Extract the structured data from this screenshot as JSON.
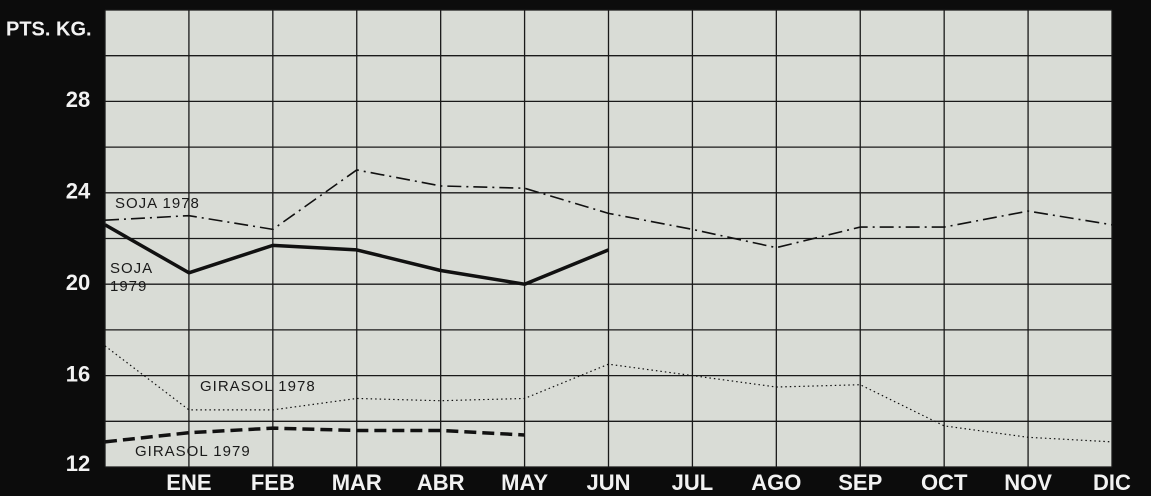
{
  "chart_data": {
    "type": "line",
    "y_label": "PTS. KG.",
    "categories": [
      null,
      "ENE",
      "FEB",
      "MAR",
      "ABR",
      "MAY",
      "JUN",
      "JUL",
      "AGO",
      "SEP",
      "OCT",
      "NOV",
      "DIC"
    ],
    "ylim": [
      12,
      32
    ],
    "yticks": [
      12,
      16,
      20,
      24,
      28
    ],
    "grid": true,
    "series": [
      {
        "name": "SOJA 1978",
        "color": "#111111",
        "linestyle": "dashdot",
        "linewidth": 1.6,
        "values": [
          22.8,
          23.0,
          22.4,
          25.0,
          24.3,
          24.2,
          23.1,
          22.4,
          21.6,
          22.5,
          22.5,
          23.2,
          22.6
        ]
      },
      {
        "name": "SOJA 1979",
        "color": "#111111",
        "linestyle": "solid",
        "linewidth": 3.5,
        "values": [
          22.6,
          20.5,
          21.7,
          21.5,
          20.6,
          20.0,
          21.5,
          null,
          null,
          null,
          null,
          null,
          null
        ]
      },
      {
        "name": "GIRASOL 1978",
        "color": "#111111",
        "linestyle": "dotted",
        "linewidth": 1.2,
        "values": [
          17.3,
          14.5,
          14.5,
          15.0,
          14.9,
          15.0,
          16.5,
          16.0,
          15.5,
          15.6,
          13.8,
          13.3,
          13.1
        ]
      },
      {
        "name": "GIRASOL 1979",
        "color": "#111111",
        "linestyle": "dashed",
        "linewidth": 3.5,
        "values": [
          13.1,
          13.5,
          13.7,
          13.6,
          13.6,
          13.4,
          null,
          null,
          null,
          null,
          null,
          null,
          null
        ]
      }
    ]
  }
}
